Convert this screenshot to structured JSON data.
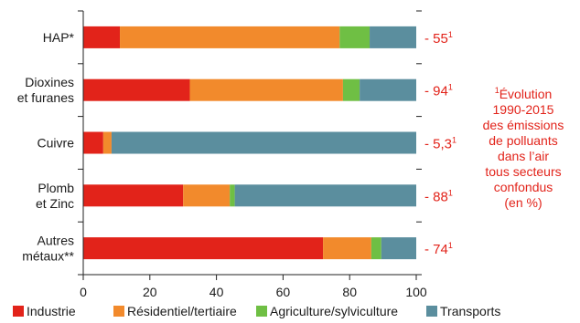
{
  "chart_data": {
    "type": "bar",
    "orientation": "horizontal",
    "stacked": true,
    "categories": [
      [
        "HAP*"
      ],
      [
        "Dioxines",
        "et furanes"
      ],
      [
        "Cuivre"
      ],
      [
        "Plomb",
        "et Zinc"
      ],
      [
        "Autres",
        "métaux**"
      ]
    ],
    "series": [
      {
        "name": "Industrie",
        "color": "#e2231a",
        "values": [
          11,
          32,
          6,
          30,
          72
        ]
      },
      {
        "name": "Résidentiel/tertiaire",
        "color": "#f28a2c",
        "values": [
          66,
          46,
          2.5,
          14,
          14.5
        ]
      },
      {
        "name": "Agriculture/sylviculture",
        "color": "#6fbf44",
        "values": [
          9,
          5,
          0,
          1.5,
          3
        ]
      },
      {
        "name": "Transports",
        "color": "#5b8e9e",
        "values": [
          14,
          17,
          91.5,
          54.5,
          10.5
        ]
      }
    ],
    "evolution_labels": [
      {
        "value": "- 55",
        "sup": "1"
      },
      {
        "value": "- 94",
        "sup": "1"
      },
      {
        "value": "- 5,3",
        "sup": "1"
      },
      {
        "value": "- 88",
        "sup": "1"
      },
      {
        "value": "- 74",
        "sup": "1"
      }
    ],
    "xlim": [
      0,
      100
    ],
    "xticks": [
      0,
      20,
      40,
      60,
      80,
      100
    ],
    "note": {
      "sup": "1",
      "lines": [
        "Évolution",
        "1990-2015",
        "des émissions",
        "de polluants",
        "dans l’air",
        "tous secteurs",
        "confondus",
        "(en %)"
      ]
    },
    "legend_position": "bottom",
    "grid": false
  }
}
